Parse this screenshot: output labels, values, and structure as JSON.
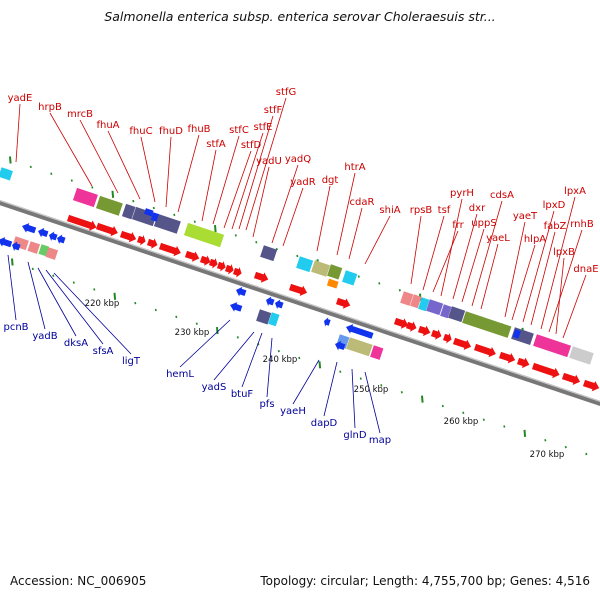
{
  "title": "Salmonella enterica subsp. enterica serovar Choleraesuis str...",
  "footer": {
    "accession": "Accession: NC_006905",
    "summary": "Topology: circular; Length: 4,755,700 bp; Genes: 4,516"
  },
  "colors": {
    "forward_gene": "#ee1111",
    "reverse_gene": "#1133ee",
    "forward_label": "#cc0000",
    "reverse_label": "#000099",
    "backbone": "#888888",
    "tick": "#228822",
    "cog_pink": "#ee3399",
    "cog_olive": "#779933",
    "cog_slate": "#55558a",
    "cog_lime": "#aadd33",
    "cog_cyan": "#22ccee",
    "cog_tan": "#bbbb77",
    "cog_salmon": "#ee8888",
    "cog_purple": "#7766cc"
  },
  "scale_labels": [
    "220 kbp",
    "230 kbp",
    "240 kbp",
    "250 kbp",
    "260 kbp",
    "270 kbp"
  ],
  "forward_genes": [
    "yadE",
    "hrpB",
    "mrcB",
    "fhuA",
    "fhuC",
    "fhuD",
    "fhuB",
    "stfA",
    "stfC",
    "stfD",
    "stfE",
    "stfF",
    "stfG",
    "yadU",
    "yadQ",
    "yadR",
    "dgt",
    "htrA",
    "cdaR",
    "shiA",
    "rpsB",
    "tsf",
    "frr",
    "pyrH",
    "dxr",
    "uppS",
    "cdsA",
    "yaeL",
    "yaeT",
    "hlpA",
    "lpxD",
    "fabZ",
    "lpxA",
    "rnhB",
    "lpxB",
    "dnaE"
  ],
  "reverse_genes": [
    "pcnB",
    "yadB",
    "dksA",
    "sfsA",
    "ligT",
    "hemL",
    "yadS",
    "btuF",
    "pfs",
    "yaeH",
    "dapD",
    "glnD",
    "map"
  ]
}
